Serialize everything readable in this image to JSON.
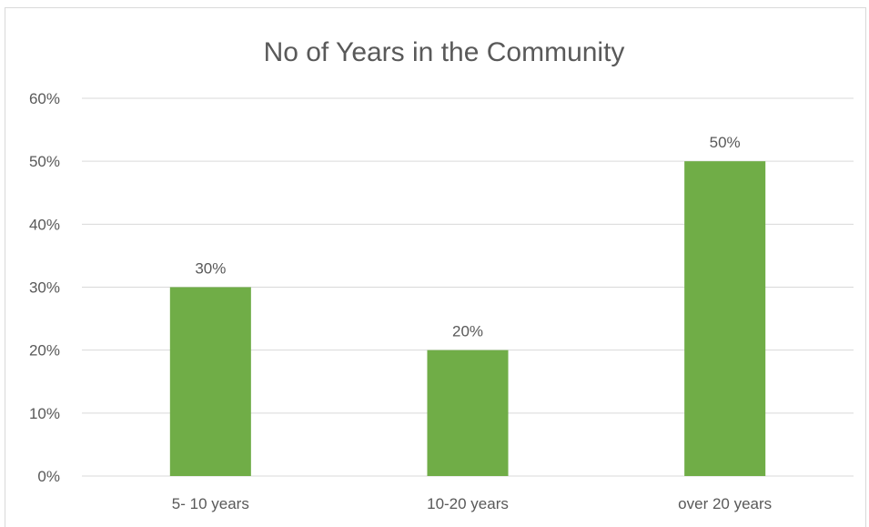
{
  "chart_data": {
    "type": "bar",
    "title": "No of Years in the Community",
    "xlabel": "",
    "ylabel": "",
    "categories": [
      "5- 10 years",
      "10-20 years",
      "over 20 years"
    ],
    "values": [
      30,
      20,
      50
    ],
    "data_labels": [
      "30%",
      "20%",
      "50%"
    ],
    "ylim": [
      0,
      60
    ],
    "y_ticks": [
      0,
      10,
      20,
      30,
      40,
      50,
      60
    ],
    "y_tick_labels": [
      "0%",
      "10%",
      "20%",
      "30%",
      "40%",
      "50%",
      "60%"
    ],
    "grid": true,
    "legend": "none",
    "colors": {
      "bar": "#70ad47",
      "grid": "#d9d9d9",
      "text": "#595959"
    }
  }
}
